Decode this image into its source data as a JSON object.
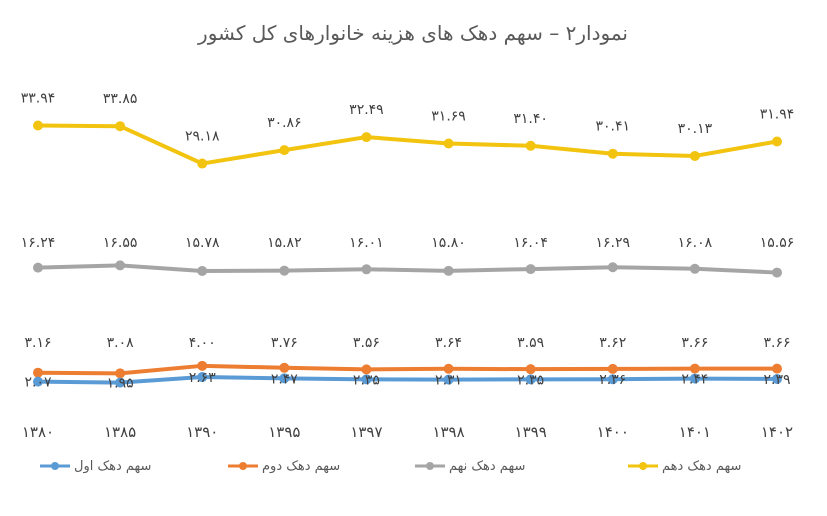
{
  "chart_data": {
    "type": "line",
    "title": "نمودار۲ – سهم دهک های هزینه خانوارهای کل کشور",
    "categories": [
      "۱۳۸۰",
      "۱۳۸۵",
      "۱۳۹۰",
      "۱۳۹۵",
      "۱۳۹۷",
      "۱۳۹۸",
      "۱۳۹۹",
      "۱۴۰۰",
      "۱۴۰۱",
      "۱۴۰۲"
    ],
    "series": [
      {
        "name": "سهم دهک دهم",
        "color": "#F2C40F",
        "values": [
          33.94,
          33.85,
          29.18,
          30.86,
          32.49,
          31.69,
          31.4,
          30.41,
          30.13,
          31.94
        ],
        "labels": [
          "۳۳.۹۴",
          "۳۳.۸۵",
          "۲۹.۱۸",
          "۳۰.۸۶",
          "۳۲.۴۹",
          "۳۱.۶۹",
          "۳۱.۴۰",
          "۳۰.۴۱",
          "۳۰.۱۳",
          "۳۱.۹۴"
        ]
      },
      {
        "name": "سهم دهک نهم",
        "color": "#A5A5A5",
        "values": [
          16.24,
          16.55,
          15.78,
          15.82,
          16.01,
          15.8,
          16.04,
          16.29,
          16.08,
          15.56
        ],
        "labels": [
          "۱۶.۲۴",
          "۱۶.۵۵",
          "۱۵.۷۸",
          "۱۵.۸۲",
          "۱۶.۰۱",
          "۱۵.۸۰",
          "۱۶.۰۴",
          "۱۶.۲۹",
          "۱۶.۰۸",
          "۱۵.۵۶"
        ]
      },
      {
        "name": "سهم دهک دوم",
        "color": "#ED7D31",
        "values": [
          3.16,
          3.08,
          4.0,
          3.76,
          3.56,
          3.64,
          3.59,
          3.62,
          3.66,
          3.66
        ],
        "labels": [
          "۳.۱۶",
          "۳.۰۸",
          "۴.۰۰",
          "۳.۷۶",
          "۳.۵۶",
          "۳.۶۴",
          "۳.۵۹",
          "۳.۶۲",
          "۳.۶۶",
          "۳.۶۶"
        ]
      },
      {
        "name": "سهم دهک اول",
        "color": "#5B9BD5",
        "values": [
          2.07,
          1.95,
          2.63,
          2.47,
          2.35,
          2.31,
          2.35,
          2.36,
          2.44,
          2.39
        ],
        "labels": [
          "۲.۰۷",
          "۱.۹۵",
          "۲.۶۳",
          "۲.۴۷",
          "۲.۳۵",
          "۲.۳۱",
          "۲.۳۵",
          "۲.۳۶",
          "۲.۴۴",
          "۲.۳۹"
        ]
      }
    ],
    "legend": {
      "placement": "bottom",
      "order": [
        "سهم دهک اول",
        "سهم دهک دوم",
        "سهم دهک نهم",
        "سهم دهک دهم"
      ]
    },
    "grid": false,
    "ylim": [
      0,
      36
    ]
  }
}
